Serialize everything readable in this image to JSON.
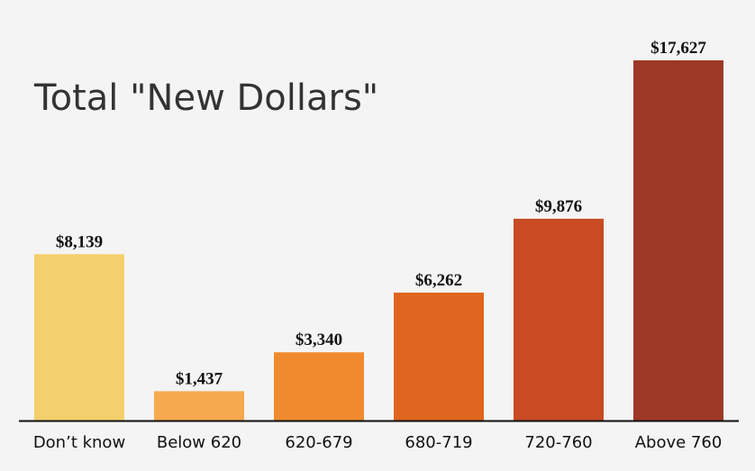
{
  "chart_data": {
    "type": "bar",
    "title": "Total \"New Dollars\"",
    "xlabel": "",
    "ylabel": "",
    "ylim": [
      0,
      18500
    ],
    "grid": false,
    "categories": [
      "Don’t know",
      "Below 620",
      "620-679",
      "680-719",
      "720-760",
      "Above 760"
    ],
    "values": [
      8139,
      1437,
      3340,
      6262,
      9876,
      17627
    ],
    "value_labels": [
      "$8,139",
      "$1,437",
      "$3,340",
      "$6,262",
      "$9,876",
      "$17,627"
    ],
    "colors": [
      "#f3d06b",
      "#f7a94f",
      "#f08a2e",
      "#e0651f",
      "#c84b23",
      "#9e3826"
    ]
  }
}
